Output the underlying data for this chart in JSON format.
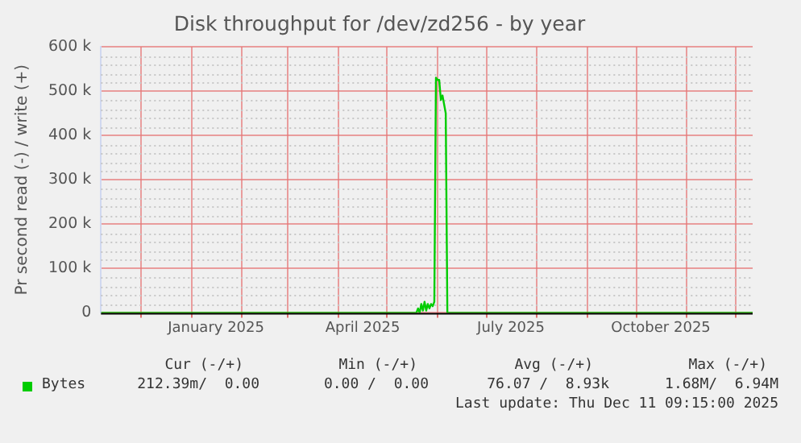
{
  "chart_data": {
    "type": "line",
    "title": "Disk throughput for /dev/zd256 - by year",
    "ylabel": "Pr second read (-) / write (+)",
    "x": [
      "2024-11-06T09:15",
      "2025-05-19",
      "2025-05-20",
      "2025-05-21",
      "2025-05-22",
      "2025-05-23",
      "2025-05-24",
      "2025-05-25",
      "2025-05-26",
      "2025-05-27",
      "2025-05-28",
      "2025-05-29",
      "2025-05-30",
      "2025-05-31",
      "2025-06-01",
      "2025-06-02",
      "2025-06-03",
      "2025-06-04",
      "2025-06-05",
      "2025-06-06",
      "2025-06-07",
      "2025-12-11T09:15"
    ],
    "series": [
      {
        "name": "Bytes",
        "color": "#00cc00",
        "values": [
          0,
          0,
          10000,
          0,
          20000,
          5000,
          25000,
          5000,
          20000,
          10000,
          20000,
          15000,
          25000,
          530000,
          525000,
          525000,
          480000,
          490000,
          470000,
          450000,
          0,
          0
        ]
      }
    ],
    "xlim": [
      "2024-11-06T09:15",
      "2025-12-11T09:15"
    ],
    "xticks": [
      {
        "value": "2024-12-01",
        "label": null
      },
      {
        "value": "2025-01-01",
        "label": null
      },
      {
        "value": "2025-01-16",
        "label": "January 2025"
      },
      {
        "value": "2025-02-01",
        "label": null
      },
      {
        "value": "2025-03-01",
        "label": null
      },
      {
        "value": "2025-04-01",
        "label": null
      },
      {
        "value": "2025-04-16",
        "label": "April 2025"
      },
      {
        "value": "2025-05-01",
        "label": null
      },
      {
        "value": "2025-06-01",
        "label": null
      },
      {
        "value": "2025-07-01",
        "label": null
      },
      {
        "value": "2025-07-16",
        "label": "July 2025"
      },
      {
        "value": "2025-08-01",
        "label": null
      },
      {
        "value": "2025-09-01",
        "label": null
      },
      {
        "value": "2025-10-01",
        "label": null
      },
      {
        "value": "2025-10-16",
        "label": "October 2025"
      },
      {
        "value": "2025-11-01",
        "label": null
      },
      {
        "value": "2025-12-01",
        "label": null
      }
    ],
    "ylim": [
      0,
      600000
    ],
    "yticks": [
      {
        "value": 0,
        "label": "0"
      },
      {
        "value": 100000,
        "label": "100 k"
      },
      {
        "value": 200000,
        "label": "200 k"
      },
      {
        "value": 300000,
        "label": "300 k"
      },
      {
        "value": 400000,
        "label": "400 k"
      },
      {
        "value": 500000,
        "label": "500 k"
      },
      {
        "value": 600000,
        "label": "600 k"
      }
    ],
    "grid": true,
    "legend": "bottom",
    "marker": "none",
    "line_style": "solid",
    "annotations": [
      "Cur (-/+)",
      "Min (-/+)",
      "Avg (-/+)",
      "Max (-/+)",
      "212.39m/  0.00",
      "0.00 /  0.00",
      "76.07 /  8.93k",
      "1.68M/  6.94M",
      "Last update: Thu Dec 11 09:15:00 2025"
    ]
  }
}
